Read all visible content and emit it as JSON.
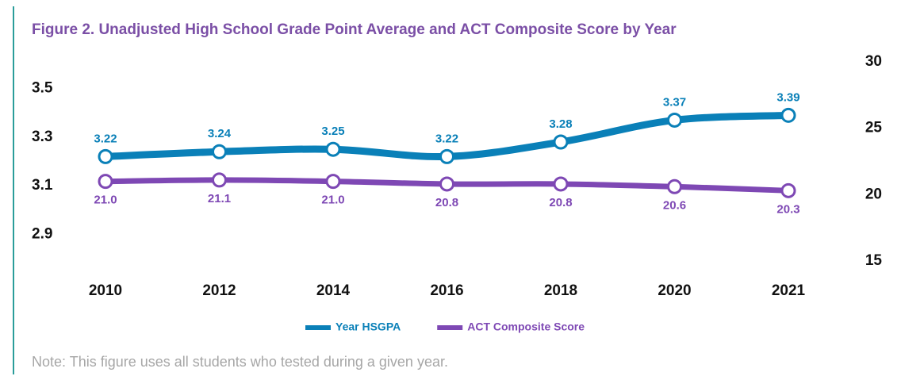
{
  "chart_data": {
    "type": "line",
    "title": "Figure 2. Unadjusted High School Grade Point Average and ACT Composite Score by Year",
    "categories": [
      "2010",
      "2012",
      "2014",
      "2016",
      "2018",
      "2020",
      "2021"
    ],
    "series": [
      {
        "name": "Year HSGPA",
        "color": "#0a80b8",
        "values": [
          3.22,
          3.24,
          3.25,
          3.22,
          3.28,
          3.37,
          3.39
        ]
      },
      {
        "name": "ACT Composite Score",
        "color": "#7e48b4",
        "axis": "y2",
        "values": [
          21.0,
          21.1,
          21.0,
          20.8,
          20.8,
          20.6,
          20.3
        ],
        "value_labels": [
          "21.0",
          "21.1",
          "21.0",
          "20.8",
          "20.8",
          "20.6",
          "20.3"
        ]
      }
    ],
    "ylim": [
      2.79,
      3.61
    ],
    "yticks": [
      3.5,
      3.3,
      3.1,
      2.9
    ],
    "y2lim": [
      15,
      30
    ],
    "y2ticks": [
      30,
      25,
      20,
      15
    ],
    "grid": false,
    "legend": "bottom",
    "note": "Note: This figure uses all students who tested during a given year."
  }
}
